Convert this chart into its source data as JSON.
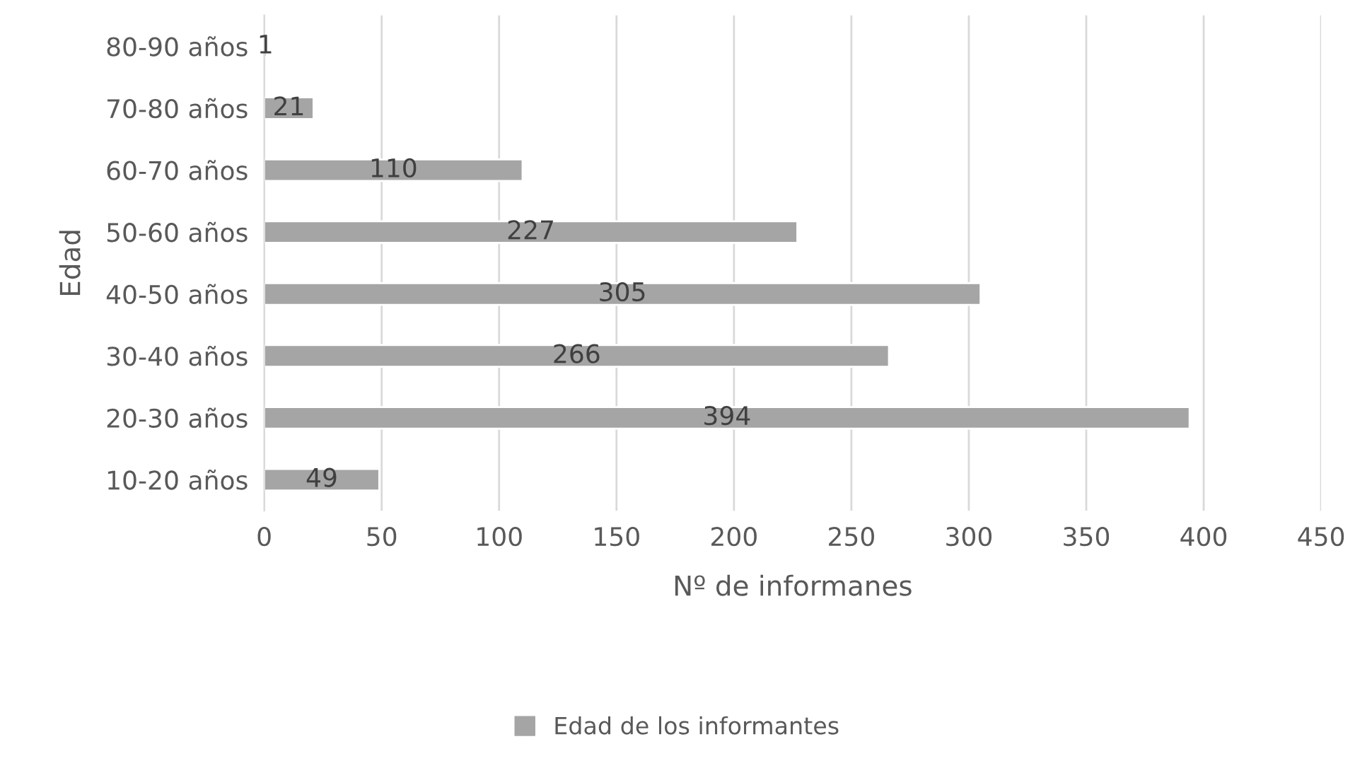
{
  "chart_data": {
    "type": "bar",
    "orientation": "horizontal",
    "xlabel": "Nº de informanes",
    "ylabel": "Edad",
    "categories": [
      "80-90 años",
      "70-80 años",
      "60-70 años",
      "50-60 años",
      "40-50 años",
      "30-40 años",
      "20-30 años",
      "10-20 años"
    ],
    "series": [
      {
        "name": "Edad de los informantes",
        "color": "#a5a5a5",
        "values": [
          1,
          21,
          110,
          227,
          305,
          266,
          394,
          49
        ]
      }
    ],
    "xlim": [
      0,
      450
    ],
    "xticks": [
      0,
      50,
      100,
      150,
      200,
      250,
      300,
      350,
      400,
      450
    ],
    "grid": "x",
    "legend": "bottom",
    "data_labels": true
  }
}
